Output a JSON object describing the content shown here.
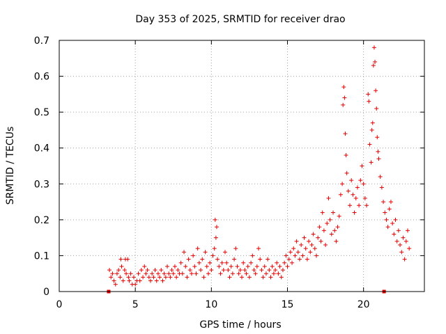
{
  "chart_data": {
    "type": "scatter",
    "title": "Day 353 of 2025, SRMTID for receiver drao",
    "xlabel": "GPS time / hours",
    "ylabel": "SRMTID / TECUs",
    "xlim": [
      0,
      24
    ],
    "ylim": [
      0,
      0.7
    ],
    "xticks": [
      0,
      5,
      10,
      15,
      20
    ],
    "yticks": [
      0,
      0.1,
      0.2,
      0.3,
      0.4,
      0.5,
      0.6,
      0.7
    ],
    "grid": true,
    "marker": "+",
    "color": "#e00000",
    "baseline_markers_x": [
      3.25,
      21.35
    ],
    "series": [
      {
        "name": "SRMTID",
        "points": [
          [
            3.3,
            0.06
          ],
          [
            3.4,
            0.04
          ],
          [
            3.5,
            0.05
          ],
          [
            3.6,
            0.03
          ],
          [
            3.7,
            0.02
          ],
          [
            3.8,
            0.05
          ],
          [
            3.9,
            0.06
          ],
          [
            4.0,
            0.04
          ],
          [
            4.05,
            0.09
          ],
          [
            4.1,
            0.07
          ],
          [
            4.2,
            0.03
          ],
          [
            4.3,
            0.06
          ],
          [
            4.35,
            0.09
          ],
          [
            4.4,
            0.05
          ],
          [
            4.5,
            0.09
          ],
          [
            4.55,
            0.04
          ],
          [
            4.6,
            0.03
          ],
          [
            4.7,
            0.05
          ],
          [
            4.8,
            0.02
          ],
          [
            4.9,
            0.04
          ],
          [
            5.0,
            0.02
          ],
          [
            5.1,
            0.03
          ],
          [
            5.2,
            0.05
          ],
          [
            5.3,
            0.03
          ],
          [
            5.4,
            0.06
          ],
          [
            5.5,
            0.04
          ],
          [
            5.6,
            0.07
          ],
          [
            5.7,
            0.05
          ],
          [
            5.8,
            0.06
          ],
          [
            5.9,
            0.04
          ],
          [
            6.0,
            0.03
          ],
          [
            6.1,
            0.05
          ],
          [
            6.2,
            0.04
          ],
          [
            6.3,
            0.06
          ],
          [
            6.4,
            0.03
          ],
          [
            6.5,
            0.05
          ],
          [
            6.6,
            0.04
          ],
          [
            6.7,
            0.06
          ],
          [
            6.8,
            0.03
          ],
          [
            6.9,
            0.05
          ],
          [
            7.0,
            0.04
          ],
          [
            7.1,
            0.07
          ],
          [
            7.2,
            0.05
          ],
          [
            7.3,
            0.04
          ],
          [
            7.4,
            0.06
          ],
          [
            7.5,
            0.05
          ],
          [
            7.6,
            0.07
          ],
          [
            7.7,
            0.04
          ],
          [
            7.8,
            0.06
          ],
          [
            7.9,
            0.05
          ],
          [
            8.0,
            0.08
          ],
          [
            8.1,
            0.05
          ],
          [
            8.2,
            0.11
          ],
          [
            8.3,
            0.07
          ],
          [
            8.4,
            0.04
          ],
          [
            8.5,
            0.09
          ],
          [
            8.6,
            0.06
          ],
          [
            8.7,
            0.05
          ],
          [
            8.8,
            0.1
          ],
          [
            8.9,
            0.07
          ],
          [
            9.0,
            0.05
          ],
          [
            9.1,
            0.12
          ],
          [
            9.2,
            0.08
          ],
          [
            9.3,
            0.06
          ],
          [
            9.4,
            0.09
          ],
          [
            9.5,
            0.04
          ],
          [
            9.6,
            0.11
          ],
          [
            9.7,
            0.07
          ],
          [
            9.8,
            0.05
          ],
          [
            9.9,
            0.08
          ],
          [
            10.0,
            0.06
          ],
          [
            10.1,
            0.1
          ],
          [
            10.2,
            0.12
          ],
          [
            10.25,
            0.2
          ],
          [
            10.3,
            0.15
          ],
          [
            10.35,
            0.18
          ],
          [
            10.4,
            0.09
          ],
          [
            10.5,
            0.07
          ],
          [
            10.6,
            0.05
          ],
          [
            10.7,
            0.08
          ],
          [
            10.8,
            0.06
          ],
          [
            10.9,
            0.11
          ],
          [
            11.0,
            0.08
          ],
          [
            11.1,
            0.06
          ],
          [
            11.2,
            0.04
          ],
          [
            11.3,
            0.07
          ],
          [
            11.4,
            0.05
          ],
          [
            11.5,
            0.09
          ],
          [
            11.6,
            0.12
          ],
          [
            11.7,
            0.07
          ],
          [
            11.8,
            0.05
          ],
          [
            11.9,
            0.06
          ],
          [
            12.0,
            0.04
          ],
          [
            12.1,
            0.08
          ],
          [
            12.2,
            0.06
          ],
          [
            12.3,
            0.05
          ],
          [
            12.4,
            0.07
          ],
          [
            12.5,
            0.04
          ],
          [
            12.6,
            0.08
          ],
          [
            12.7,
            0.1
          ],
          [
            12.8,
            0.06
          ],
          [
            12.9,
            0.05
          ],
          [
            13.0,
            0.07
          ],
          [
            13.1,
            0.12
          ],
          [
            13.2,
            0.09
          ],
          [
            13.3,
            0.06
          ],
          [
            13.4,
            0.04
          ],
          [
            13.5,
            0.07
          ],
          [
            13.6,
            0.05
          ],
          [
            13.7,
            0.09
          ],
          [
            13.8,
            0.06
          ],
          [
            13.9,
            0.04
          ],
          [
            14.0,
            0.07
          ],
          [
            14.1,
            0.05
          ],
          [
            14.2,
            0.06
          ],
          [
            14.3,
            0.08
          ],
          [
            14.4,
            0.05
          ],
          [
            14.5,
            0.07
          ],
          [
            14.6,
            0.04
          ],
          [
            14.7,
            0.06
          ],
          [
            14.8,
            0.08
          ],
          [
            14.9,
            0.1
          ],
          [
            15.0,
            0.07
          ],
          [
            15.1,
            0.09
          ],
          [
            15.2,
            0.11
          ],
          [
            15.3,
            0.08
          ],
          [
            15.4,
            0.12
          ],
          [
            15.5,
            0.1
          ],
          [
            15.6,
            0.14
          ],
          [
            15.7,
            0.11
          ],
          [
            15.8,
            0.09
          ],
          [
            15.9,
            0.13
          ],
          [
            16.0,
            0.1
          ],
          [
            16.1,
            0.15
          ],
          [
            16.2,
            0.12
          ],
          [
            16.3,
            0.09
          ],
          [
            16.4,
            0.14
          ],
          [
            16.5,
            0.11
          ],
          [
            16.6,
            0.13
          ],
          [
            16.7,
            0.16
          ],
          [
            16.8,
            0.12
          ],
          [
            16.9,
            0.1
          ],
          [
            17.0,
            0.15
          ],
          [
            17.1,
            0.18
          ],
          [
            17.2,
            0.14
          ],
          [
            17.3,
            0.22
          ],
          [
            17.4,
            0.17
          ],
          [
            17.5,
            0.13
          ],
          [
            17.6,
            0.19
          ],
          [
            17.7,
            0.26
          ],
          [
            17.8,
            0.2
          ],
          [
            17.9,
            0.16
          ],
          [
            18.0,
            0.22
          ],
          [
            18.1,
            0.17
          ],
          [
            18.2,
            0.14
          ],
          [
            18.3,
            0.18
          ],
          [
            18.4,
            0.21
          ],
          [
            18.5,
            0.27
          ],
          [
            18.6,
            0.3
          ],
          [
            18.65,
            0.52
          ],
          [
            18.7,
            0.57
          ],
          [
            18.75,
            0.54
          ],
          [
            18.8,
            0.44
          ],
          [
            18.85,
            0.38
          ],
          [
            18.9,
            0.33
          ],
          [
            19.0,
            0.28
          ],
          [
            19.1,
            0.24
          ],
          [
            19.2,
            0.31
          ],
          [
            19.3,
            0.27
          ],
          [
            19.4,
            0.22
          ],
          [
            19.5,
            0.26
          ],
          [
            19.6,
            0.29
          ],
          [
            19.7,
            0.24
          ],
          [
            19.8,
            0.31
          ],
          [
            19.9,
            0.35
          ],
          [
            20.0,
            0.3
          ],
          [
            20.1,
            0.26
          ],
          [
            20.2,
            0.24
          ],
          [
            20.3,
            0.55
          ],
          [
            20.35,
            0.53
          ],
          [
            20.4,
            0.41
          ],
          [
            20.5,
            0.36
          ],
          [
            20.55,
            0.45
          ],
          [
            20.6,
            0.47
          ],
          [
            20.65,
            0.63
          ],
          [
            20.7,
            0.68
          ],
          [
            20.75,
            0.64
          ],
          [
            20.8,
            0.56
          ],
          [
            20.85,
            0.51
          ],
          [
            20.9,
            0.43
          ],
          [
            20.95,
            0.39
          ],
          [
            21.0,
            0.37
          ],
          [
            21.1,
            0.32
          ],
          [
            21.2,
            0.29
          ],
          [
            21.3,
            0.25
          ],
          [
            21.4,
            0.22
          ],
          [
            21.5,
            0.2
          ],
          [
            21.6,
            0.18
          ],
          [
            21.7,
            0.23
          ],
          [
            21.8,
            0.25
          ],
          [
            21.9,
            0.19
          ],
          [
            22.0,
            0.16
          ],
          [
            22.1,
            0.2
          ],
          [
            22.2,
            0.14
          ],
          [
            22.3,
            0.17
          ],
          [
            22.4,
            0.13
          ],
          [
            22.5,
            0.11
          ],
          [
            22.6,
            0.15
          ],
          [
            22.7,
            0.09
          ],
          [
            22.8,
            0.14
          ],
          [
            22.9,
            0.17
          ],
          [
            23.0,
            0.12
          ]
        ]
      }
    ]
  }
}
